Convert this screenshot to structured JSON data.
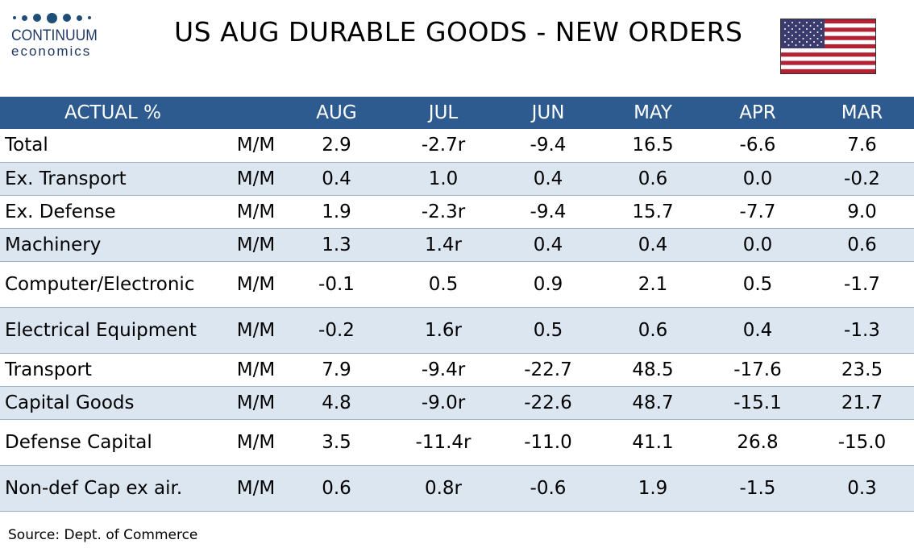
{
  "logo": {
    "name": "CONTINUUM",
    "sub": "economics"
  },
  "title": "US AUG DURABLE GOODS - NEW ORDERS",
  "flag_icon": "us-flag-icon",
  "colors": {
    "header_bg": "#2e5b8f",
    "alt_row": "#dce6f1",
    "brand": "#1f3864"
  },
  "table": {
    "header": [
      "ACTUAL %",
      "",
      "AUG",
      "JUL",
      "JUN",
      "MAY",
      "APR",
      "MAR"
    ],
    "rows": [
      {
        "label": "Total",
        "unit": "M/M",
        "values": [
          "2.9",
          "-2.7r",
          "-9.4",
          "16.5",
          "-6.6",
          "7.6"
        ]
      },
      {
        "label": "Ex. Transport",
        "unit": "M/M",
        "values": [
          "0.4",
          "1.0",
          "0.4",
          "0.6",
          "0.0",
          "-0.2"
        ]
      },
      {
        "label": "Ex. Defense",
        "unit": "M/M",
        "values": [
          "1.9",
          "-2.3r",
          "-9.4",
          "15.7",
          "-7.7",
          "9.0"
        ]
      },
      {
        "label": "Machinery",
        "unit": "M/M",
        "values": [
          "1.3",
          "1.4r",
          "0.4",
          "0.4",
          "0.0",
          "0.6"
        ]
      },
      {
        "label": "Computer/Electronic",
        "unit": "M/M",
        "values": [
          "-0.1",
          "0.5",
          "0.9",
          "2.1",
          "0.5",
          "-1.7"
        ]
      },
      {
        "label": "Electrical Equipment",
        "unit": "M/M",
        "values": [
          "-0.2",
          "1.6r",
          "0.5",
          "0.6",
          "0.4",
          "-1.3"
        ]
      },
      {
        "label": "Transport",
        "unit": "M/M",
        "values": [
          "7.9",
          "-9.4r",
          "-22.7",
          "48.5",
          "-17.6",
          "23.5"
        ]
      },
      {
        "label": "Capital Goods",
        "unit": "M/M",
        "values": [
          "4.8",
          "-9.0r",
          "-22.6",
          "48.7",
          "-15.1",
          "21.7"
        ]
      },
      {
        "label": "Defense Capital",
        "unit": "M/M",
        "values": [
          "3.5",
          "-11.4r",
          "-11.0",
          "41.1",
          "26.8",
          "-15.0"
        ]
      },
      {
        "label": "Non-def Cap ex air.",
        "unit": "M/M",
        "values": [
          "0.6",
          "0.8r",
          "-0.6",
          "1.9",
          "-1.5",
          "0.3"
        ]
      }
    ]
  },
  "source": "Source: Dept. of Commerce"
}
